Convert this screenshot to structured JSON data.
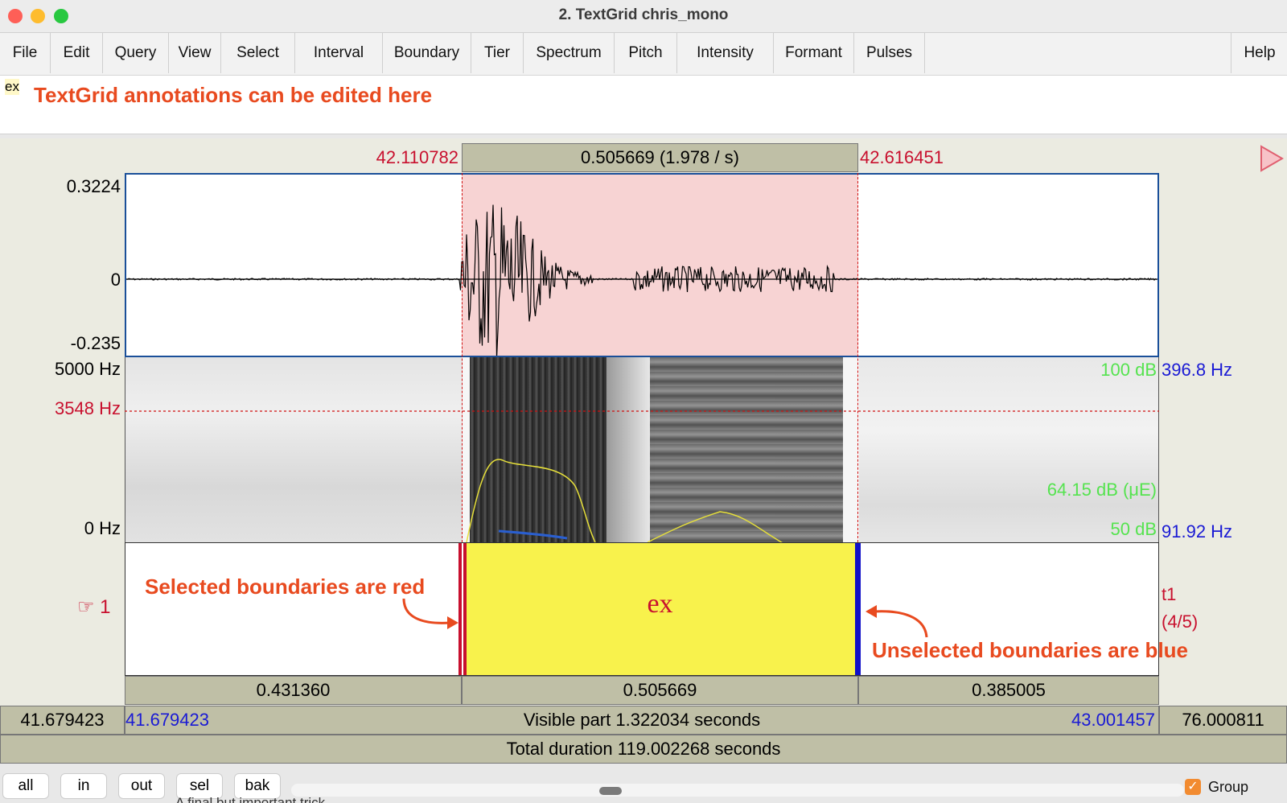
{
  "window": {
    "title": "2. TextGrid chris_mono",
    "traffic_colors": [
      "#fe5f57",
      "#febc2e",
      "#28c840"
    ]
  },
  "menu": [
    "File",
    "Edit",
    "Query",
    "View",
    "Select",
    "Interval",
    "Boundary",
    "Tier",
    "Spectrum",
    "Pitch",
    "Intensity",
    "Formant",
    "Pulses"
  ],
  "help_label": "Help",
  "text_area": {
    "value": "ex",
    "annotation": "TextGrid annotations can be edited here"
  },
  "selection": {
    "start": "42.110782",
    "end": "42.616451",
    "duration_label": "0.505669 (1.978 / s)"
  },
  "waveform": {
    "y_max": "0.3224",
    "y_zero": "0",
    "y_min": "-0.235"
  },
  "spectrogram": {
    "freq_max": "5000 Hz",
    "freq_cursor": "3548 Hz",
    "freq_min": "0 Hz",
    "intensity_max": "100 dB",
    "intensity_mid": "64.15 dB (μE)",
    "intensity_min": "50 dB",
    "pitch_max": "396.8 Hz",
    "pitch_min": "91.92 Hz"
  },
  "tier": {
    "number": "☞ 1",
    "interval_text": "ex",
    "name": "t1",
    "count": "(4/5)",
    "annotation_selected": "Selected boundaries are red",
    "annotation_unselected": "Unselected boundaries are blue",
    "selected_color": "#c8102e",
    "unselected_color": "#1010c8",
    "interval_color": "#f8f24c"
  },
  "interval_durations": [
    "0.431360",
    "0.505669",
    "0.385005"
  ],
  "visible": {
    "window_start": "41.679423",
    "start": "41.679423",
    "label": "Visible part 1.322034 seconds",
    "end": "43.001457",
    "window_end": "76.000811"
  },
  "total": {
    "label": "Total duration 119.002268 seconds"
  },
  "bottom_buttons": [
    "all",
    "in",
    "out",
    "sel",
    "bak"
  ],
  "group": {
    "label": "Group",
    "checked": true
  },
  "behind_text": "A final but important trick"
}
